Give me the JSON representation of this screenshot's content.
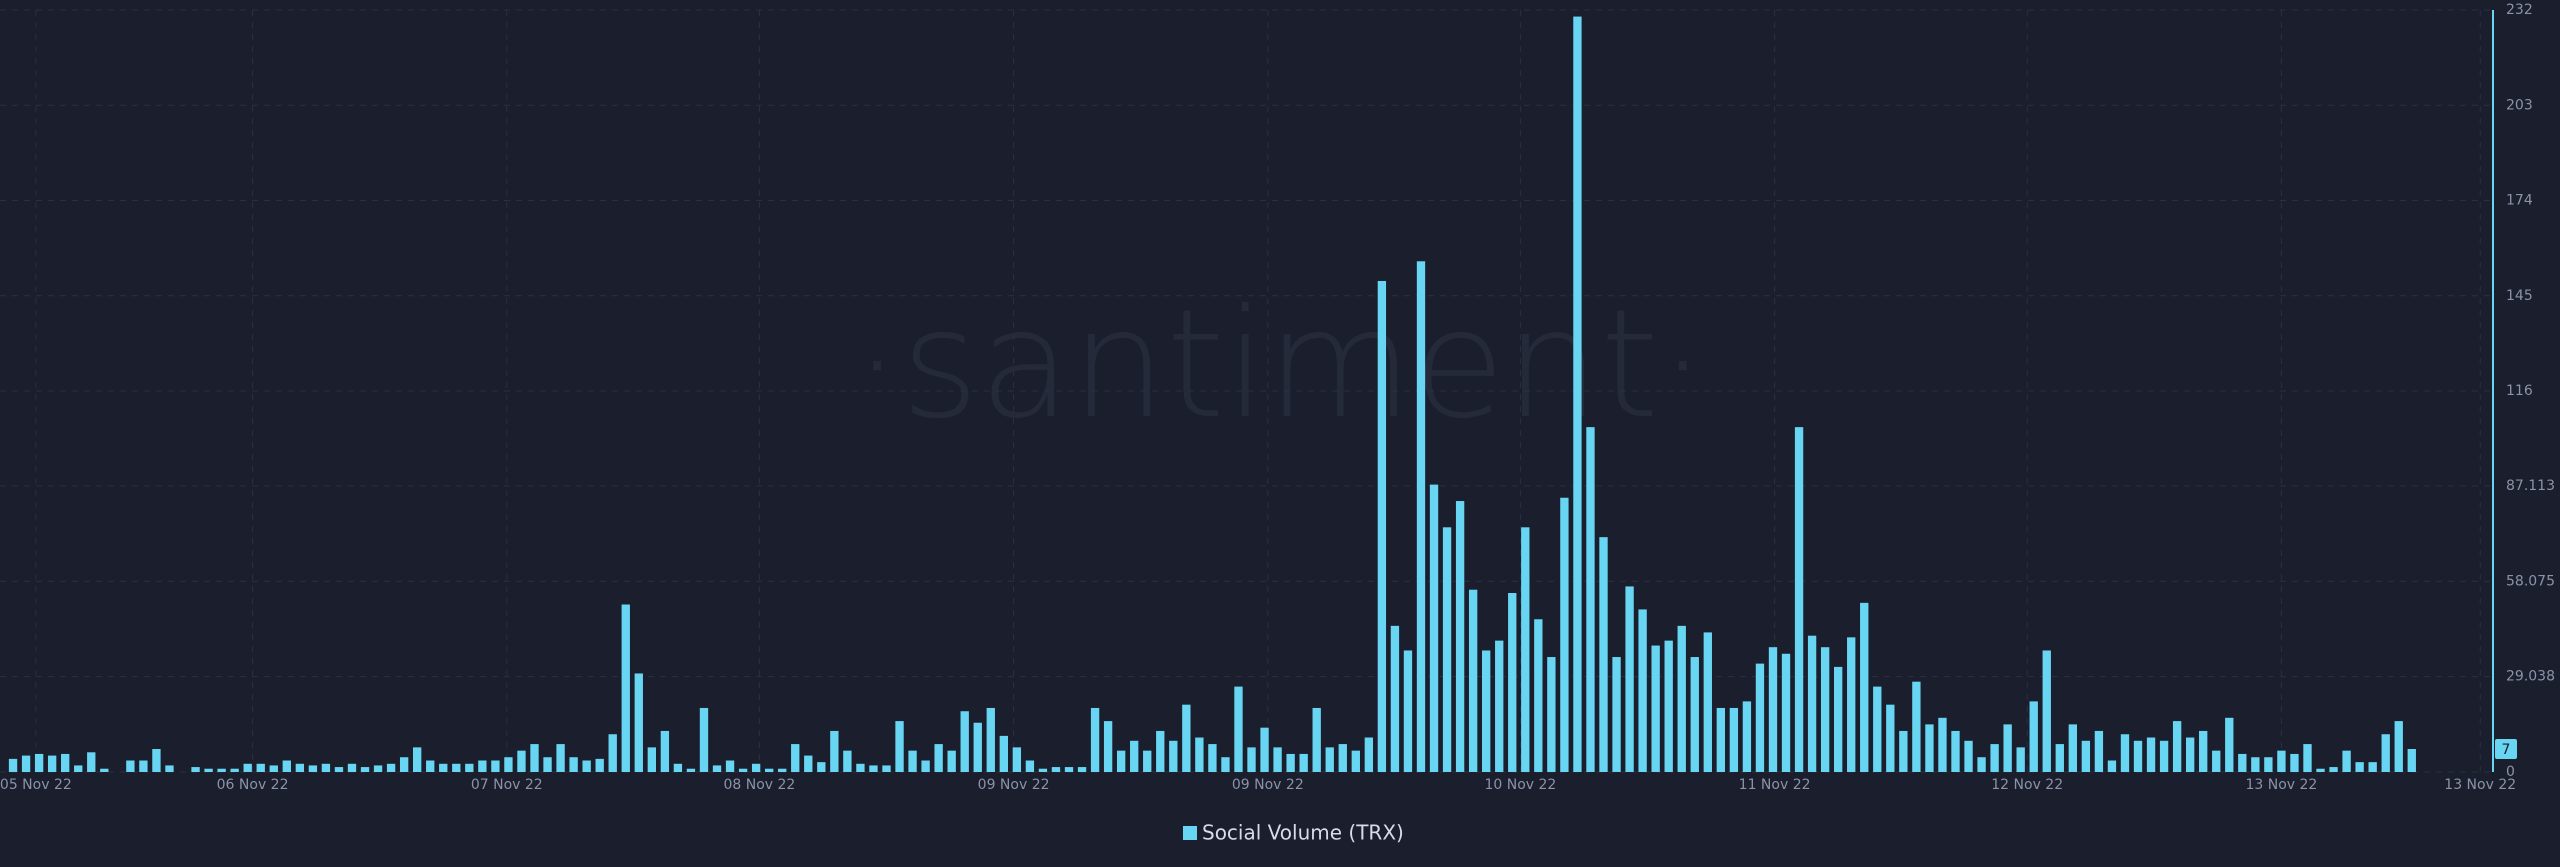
{
  "chart_data": {
    "type": "bar",
    "watermark": "·santiment·",
    "series": [
      {
        "name": "Social Volume (TRX)",
        "color": "#68d6f2",
        "values": [
          4,
          5,
          5.5,
          5,
          5.5,
          2,
          6,
          1,
          0,
          3.5,
          3.5,
          7,
          2,
          0,
          1.5,
          1,
          1,
          1,
          2.5,
          2.5,
          2,
          3.5,
          2.5,
          2,
          2.5,
          1.5,
          2.5,
          1.5,
          2,
          2.5,
          4.5,
          7.5,
          3.5,
          2.5,
          2.5,
          2.5,
          3.5,
          3.5,
          4.5,
          6.5,
          8.5,
          4.5,
          8.5,
          4.5,
          3.5,
          4,
          11.5,
          51,
          30,
          7.5,
          12.5,
          2.5,
          1,
          19.5,
          2,
          3.5,
          1,
          2.5,
          1,
          1,
          8.5,
          5,
          3,
          12.5,
          6.5,
          2.5,
          2,
          2,
          15.5,
          6.5,
          3.5,
          8.5,
          6.5,
          18.5,
          15,
          19.5,
          11,
          7.5,
          3.5,
          1,
          1.5,
          1.5,
          1.5,
          19.5,
          15.5,
          6.5,
          9.5,
          6.5,
          12.5,
          9.5,
          20.5,
          10.5,
          8.5,
          4.5,
          26,
          7.5,
          13.5,
          7.5,
          5.5,
          5.5,
          19.5,
          7.5,
          8.5,
          6.5,
          10.5,
          149.5,
          44.5,
          37,
          155.5,
          87.5,
          74.5,
          82.5,
          55.5,
          37,
          40,
          54.5,
          74.5,
          46.5,
          35,
          83.5,
          230,
          105,
          71.5,
          35,
          56.5,
          49.5,
          38.5,
          40,
          44.5,
          35,
          42.5,
          19.5,
          19.5,
          21.5,
          33,
          38,
          36,
          105,
          41.5,
          38,
          32,
          41,
          51.5,
          26,
          20.5,
          12.5,
          27.5,
          14.5,
          16.5,
          12.5,
          9.5,
          4.5,
          8.5,
          14.5,
          7.5,
          21.5,
          37,
          8.5,
          14.5,
          9.5,
          12.5,
          3.5,
          11.5,
          9.5,
          10.5,
          9.5,
          15.5,
          10.5,
          12.5,
          6.5,
          16.5,
          5.5,
          4.5,
          4.5,
          6.5,
          5.5,
          8.5,
          1,
          1.5,
          6.5,
          3,
          3,
          11.5,
          15.5,
          7
        ]
      }
    ],
    "xlim": [
      -1,
      190
    ],
    "xticks": [
      {
        "value": 1.75,
        "label": "05 Nov 22"
      },
      {
        "value": 18.375,
        "label": "06 Nov 22"
      },
      {
        "value": 37.875,
        "label": "07 Nov 22"
      },
      {
        "value": 57.25,
        "label": "08 Nov 22"
      },
      {
        "value": 76.75,
        "label": "09 Nov 22"
      },
      {
        "value": 96.25,
        "label": "09 Nov 22"
      },
      {
        "value": 115.625,
        "label": "10 Nov 22"
      },
      {
        "value": 135.125,
        "label": "11 Nov 22"
      },
      {
        "value": 154.5,
        "label": "12 Nov 22"
      },
      {
        "value": 174,
        "label": "13 Nov 22"
      },
      {
        "value": 189.25,
        "label": "13 Nov 22"
      }
    ],
    "ylim": [
      0,
      232
    ],
    "yticks": [
      0,
      29.038,
      58.075,
      87.113,
      116,
      145,
      174,
      203,
      232
    ],
    "grid": true
  }
}
